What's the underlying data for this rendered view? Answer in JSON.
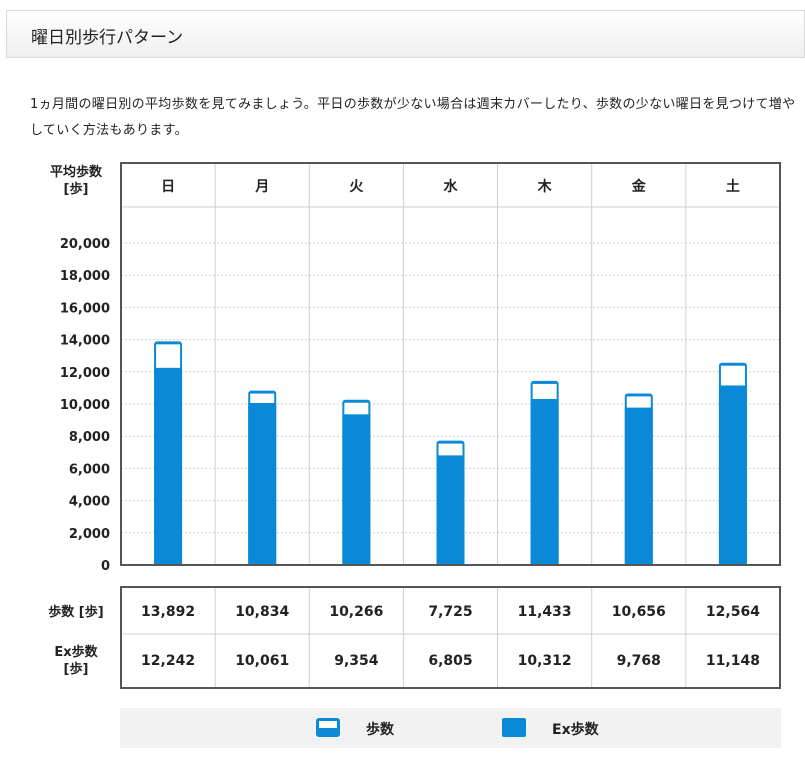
{
  "header": {
    "title": "曜日別歩行パターン"
  },
  "intro": "1ヵ月間の曜日別の平均歩数を見てみましょう。平日の歩数が少ない場合は週末カバーしたり、歩数の少ない曜日を見つけて増やしていく方法もあります。",
  "colors": {
    "bar_fill": "#0a8ad6",
    "top_segment": "#ffffff",
    "grid": "#cfcfcf",
    "border": "#555555",
    "legend_bg": "#f2f2f2"
  },
  "chart_data": {
    "type": "bar",
    "ylabel": "平均歩数\n[歩]",
    "ylim": [
      0,
      20000
    ],
    "yticks": [
      "20,000",
      "18,000",
      "16,000",
      "14,000",
      "12,000",
      "10,000",
      "8,000",
      "6,000",
      "4,000",
      "2,000",
      "0"
    ],
    "categories": [
      "日",
      "月",
      "火",
      "水",
      "木",
      "金",
      "土"
    ],
    "series": [
      {
        "name": "歩数",
        "values": [
          13892,
          10834,
          10266,
          7725,
          11433,
          10656,
          12564
        ]
      },
      {
        "name": "Ex歩数",
        "values": [
          12242,
          10061,
          9354,
          6805,
          10312,
          9768,
          11148
        ]
      }
    ],
    "grid": true
  },
  "table": {
    "rows": [
      {
        "label": "歩数 [歩]",
        "values": [
          "13,892",
          "10,834",
          "10,266",
          "7,725",
          "11,433",
          "10,656",
          "12,564"
        ]
      },
      {
        "label": "Ex歩数\n[歩]",
        "values": [
          "12,242",
          "10,061",
          "9,354",
          "6,805",
          "10,312",
          "9,768",
          "11,148"
        ]
      }
    ]
  },
  "legend": {
    "items": [
      "歩数",
      "Ex歩数"
    ]
  }
}
